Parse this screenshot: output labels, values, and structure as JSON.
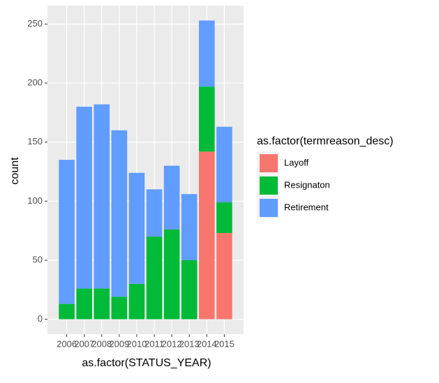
{
  "chart_data": {
    "type": "stacked-bar",
    "x_label": "as.factor(STATUS_YEAR)",
    "y_label": "count",
    "legend_title": "as.factor(termreason_desc)",
    "categories": [
      "2006",
      "2007",
      "2008",
      "2009",
      "2010",
      "2011",
      "2012",
      "2013",
      "2014",
      "2015"
    ],
    "series": [
      {
        "name": "Layoff",
        "color": "#F8766D",
        "values": [
          0,
          0,
          0,
          0,
          0,
          0,
          0,
          0,
          142,
          73
        ]
      },
      {
        "name": "Resignaton",
        "color": "#00BA38",
        "values": [
          13,
          26,
          26,
          19,
          30,
          70,
          76,
          50,
          55,
          26
        ]
      },
      {
        "name": "Retirement",
        "color": "#619CFF",
        "values": [
          122,
          154,
          156,
          141,
          94,
          40,
          54,
          56,
          56,
          64
        ]
      }
    ],
    "ylim": [
      -12.65,
      265.65
    ],
    "yticks": [
      0,
      50,
      100,
      150,
      200,
      250
    ],
    "grid": true,
    "legend_position": "right"
  }
}
